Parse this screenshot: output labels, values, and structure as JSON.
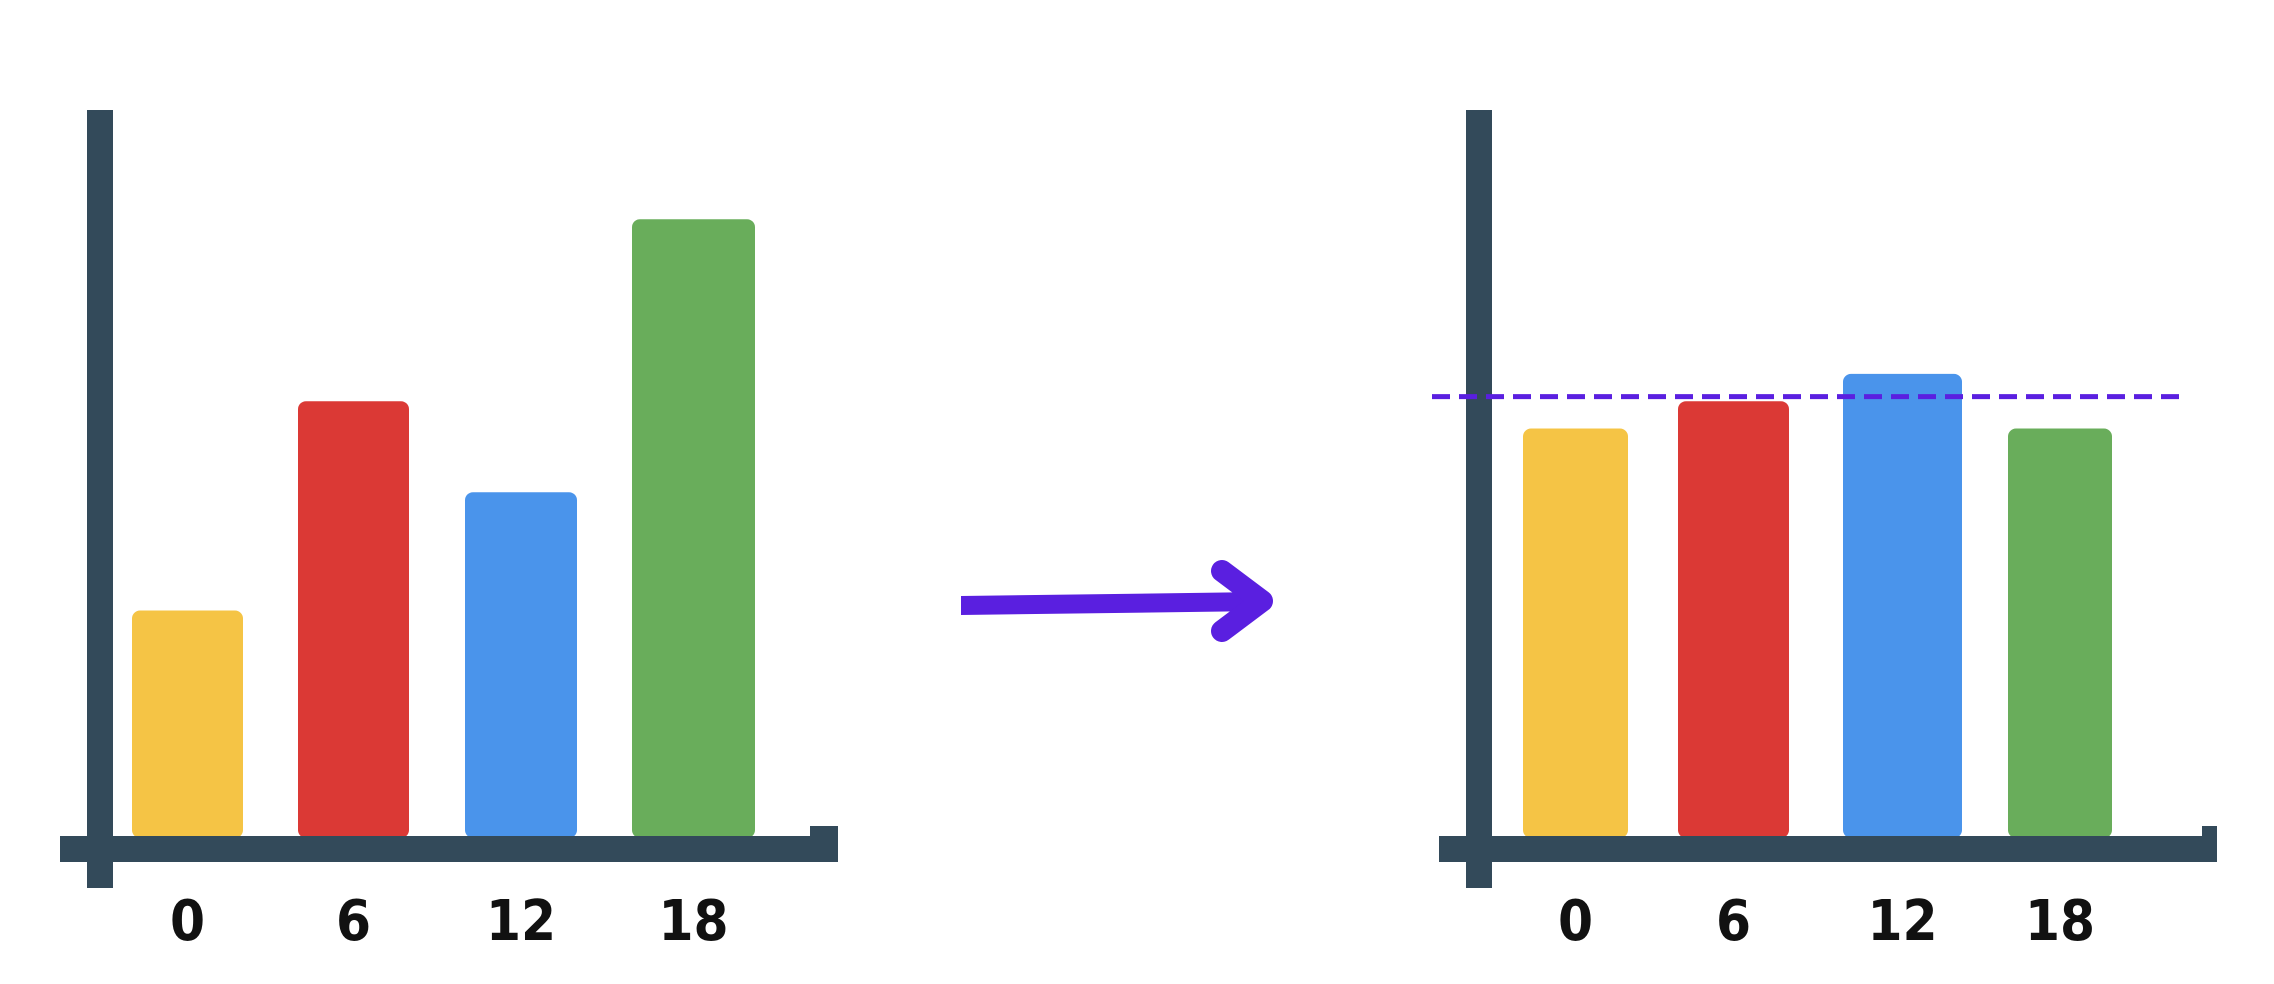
{
  "chart_data": [
    {
      "type": "bar",
      "categories": [
        "0",
        "6",
        "12",
        "18"
      ],
      "values": [
        25,
        48,
        38,
        68
      ],
      "ylim": [
        0,
        80
      ],
      "grid": false,
      "colors": [
        "#F5C445",
        "#DB3935",
        "#4A94EB",
        "#69AD5B"
      ],
      "axis_color": "#334A5A"
    },
    {
      "type": "bar",
      "categories": [
        "0",
        "6",
        "12",
        "18"
      ],
      "values": [
        45,
        48,
        51,
        45
      ],
      "ylim": [
        0,
        80
      ],
      "grid": false,
      "reference_line": {
        "value": 48.5,
        "style": "dashed",
        "color": "#5A1FE0"
      },
      "colors": [
        "#F5C445",
        "#DB3935",
        "#4A94EB",
        "#69AD5B"
      ],
      "axis_color": "#334A5A"
    }
  ],
  "transition_arrow": {
    "color": "#5A1FE0",
    "direction": "right"
  }
}
